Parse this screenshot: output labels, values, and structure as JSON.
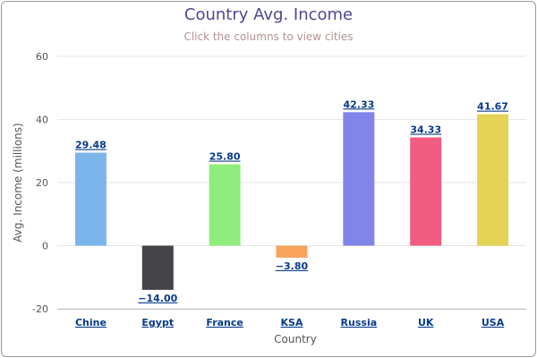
{
  "chart_data": {
    "type": "bar",
    "title": "Country Avg. Income",
    "subtitle": "Click the columns to view cities",
    "xlabel": "Country",
    "ylabel": "Avg. Income (millions)",
    "ylim": [
      -20,
      60
    ],
    "yticks": [
      -20,
      0,
      20,
      40,
      60
    ],
    "grid": true,
    "categories": [
      "Chine",
      "Egypt",
      "France",
      "KSA",
      "Russia",
      "UK",
      "USA"
    ],
    "values": [
      29.48,
      -14.0,
      25.8,
      -3.8,
      42.33,
      34.33,
      41.67
    ],
    "value_labels": [
      "29.48",
      "−14.00",
      "25.80",
      "−3.80",
      "42.33",
      "34.33",
      "41.67"
    ],
    "colors": [
      "#7cb5ec",
      "#434348",
      "#90ed7d",
      "#f7a35c",
      "#8085e9",
      "#f15c80",
      "#e4d354"
    ]
  }
}
